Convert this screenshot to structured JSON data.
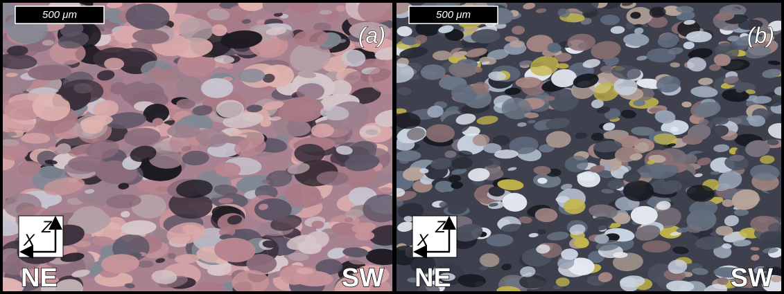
{
  "panels": [
    {
      "scale_bar": "500 μm",
      "label": "(a)",
      "axis_z": "Z",
      "axis_x": "X",
      "left_direction": "NE",
      "right_direction": "SW"
    },
    {
      "scale_bar": "500 μm",
      "label": "(b)",
      "axis_z": "Z",
      "axis_x": "X",
      "left_direction": "NE",
      "right_direction": "SW"
    }
  ]
}
